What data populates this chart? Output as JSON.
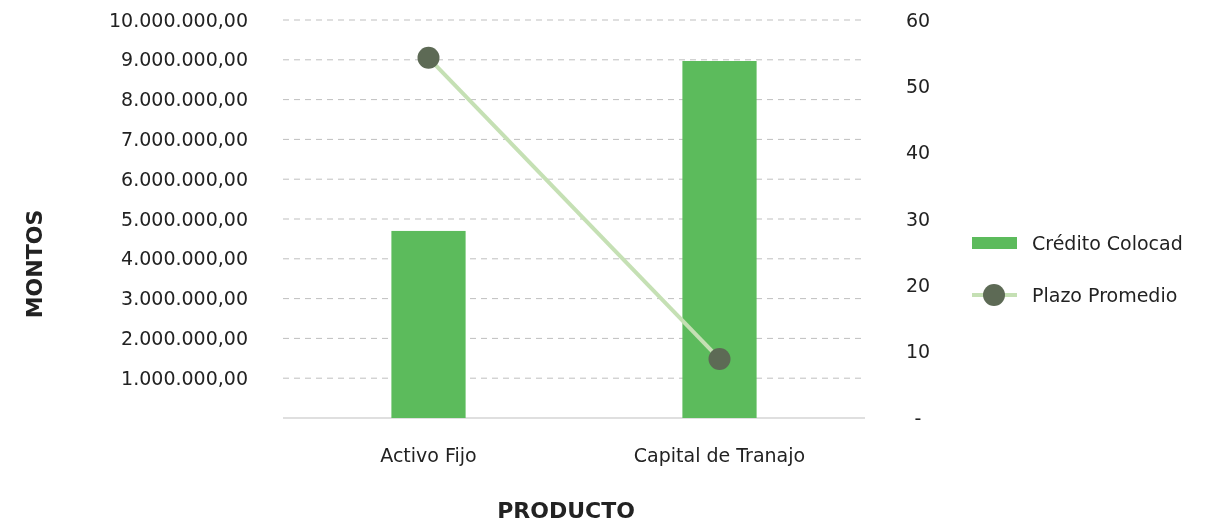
{
  "chart_data": {
    "type": "bar",
    "xlabel": "PRODUCTO",
    "ylabel": "MONTOS",
    "categories": [
      "Activo Fijo",
      "Capital de Tranajo"
    ],
    "series": [
      {
        "name": "Crédito Colocad",
        "color": "#5cbb5c",
        "values": [
          4700000,
          8970000
        ]
      },
      {
        "name": "Plazo Promedio",
        "type": "line",
        "axis": "y2",
        "color": "#c5e0b4",
        "values": [
          54.3,
          8.9
        ]
      }
    ],
    "ylim": [
      0,
      10000000
    ],
    "yticks": [
      {
        "value": 1000000,
        "label": "1.000.000,00"
      },
      {
        "value": 2000000,
        "label": "2.000.000,00"
      },
      {
        "value": 3000000,
        "label": "3.000.000,00"
      },
      {
        "value": 4000000,
        "label": "4.000.000,00"
      },
      {
        "value": 5000000,
        "label": "5.000.000,00"
      },
      {
        "value": 6000000,
        "label": "6.000.000,00"
      },
      {
        "value": 7000000,
        "label": "7.000.000,00"
      },
      {
        "value": 8000000,
        "label": "8.000.000,00"
      },
      {
        "value": 9000000,
        "label": "9.000.000,00"
      },
      {
        "value": 10000000,
        "label": "10.000.000,00"
      }
    ],
    "y2lim": [
      0,
      60
    ],
    "y2ticks": [
      {
        "value": 0,
        "label": "-"
      },
      10,
      20,
      30,
      40,
      50,
      60
    ],
    "grid": "y",
    "legend": "right",
    "marker": "circle"
  }
}
